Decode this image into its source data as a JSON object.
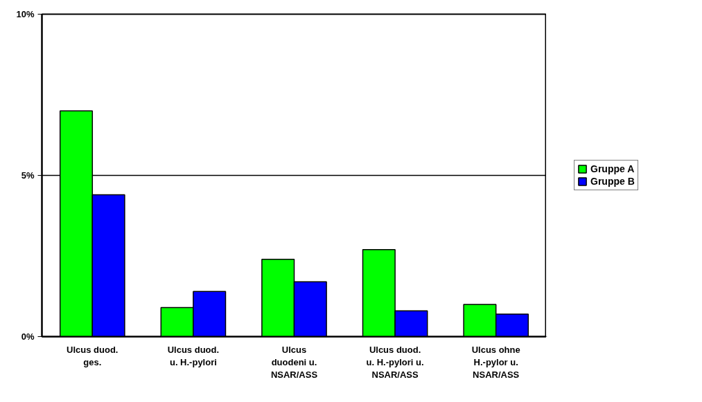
{
  "chart_data": {
    "type": "bar",
    "categories": [
      "Ulcus duod.\nges.",
      "Ulcus duod.\nu. H.-pylori",
      "Ulcus\nduodeni u.\nNSAR/ASS",
      "Ulcus duod.\nu. H.-pylori u.\nNSAR/ASS",
      "Ulcus ohne\nH.-pylor u.\nNSAR/ASS"
    ],
    "series": [
      {
        "name": "Gruppe A",
        "color": "#00ff00",
        "values": [
          7.0,
          0.9,
          2.4,
          2.7,
          1.0
        ]
      },
      {
        "name": "Gruppe B",
        "color": "#0000ff",
        "values": [
          4.4,
          1.4,
          1.7,
          0.8,
          0.7
        ]
      }
    ],
    "ylim": [
      0,
      10
    ],
    "yticks": [
      {
        "value": 0,
        "label": "0%"
      },
      {
        "value": 5,
        "label": "5%"
      },
      {
        "value": 10,
        "label": "10%"
      }
    ],
    "grid": "y",
    "legend": "right"
  }
}
